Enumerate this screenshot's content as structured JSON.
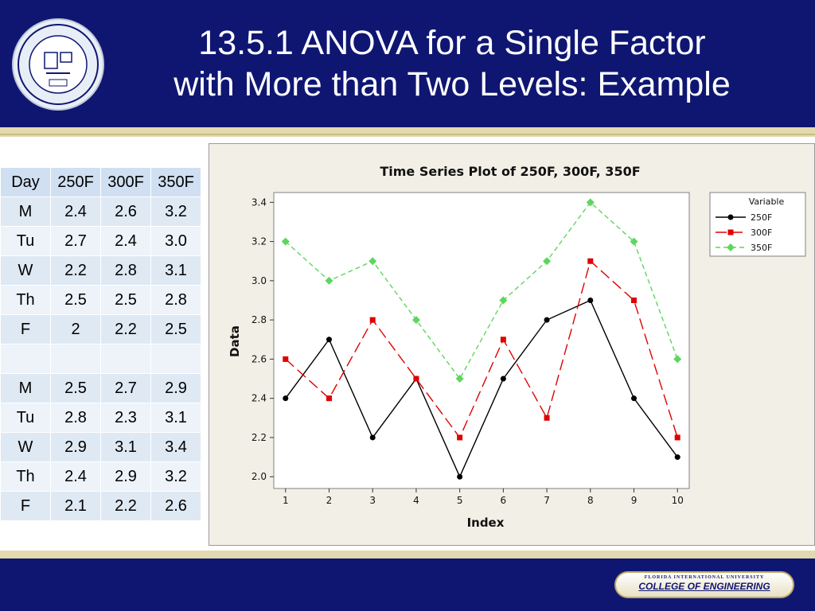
{
  "slide": {
    "title_line1": "13.5.1 ANOVA for a Single Factor",
    "title_line2": "with More than Two Levels: Example",
    "footer_university": "FLORIDA INTERNATIONAL UNIVERSITY",
    "footer_college": "COLLEGE OF ENGINEERING",
    "colors": {
      "header": "#0f1672",
      "stripe": "#e3d9ae"
    }
  },
  "table": {
    "headers": [
      "Day",
      "250F",
      "300F",
      "350F"
    ],
    "rows": [
      [
        "M",
        "2.4",
        "2.6",
        "3.2"
      ],
      [
        "Tu",
        "2.7",
        "2.4",
        "3.0"
      ],
      [
        "W",
        "2.2",
        "2.8",
        "3.1"
      ],
      [
        "Th",
        "2.5",
        "2.5",
        "2.8"
      ],
      [
        "F",
        "2",
        "2.2",
        "2.5"
      ],
      [
        "",
        "",
        "",
        ""
      ],
      [
        "M",
        "2.5",
        "2.7",
        "2.9"
      ],
      [
        "Tu",
        "2.8",
        "2.3",
        "3.1"
      ],
      [
        "W",
        "2.9",
        "3.1",
        "3.4"
      ],
      [
        "Th",
        "2.4",
        "2.9",
        "3.2"
      ],
      [
        "F",
        "2.1",
        "2.2",
        "2.6"
      ]
    ]
  },
  "chart_data": {
    "type": "line",
    "title": "Time Series Plot of 250F, 300F, 350F",
    "xlabel": "Index",
    "ylabel": "Data",
    "x": [
      1,
      2,
      3,
      4,
      5,
      6,
      7,
      8,
      9,
      10
    ],
    "ylim": [
      1.94,
      3.45
    ],
    "yticks": [
      2.0,
      2.2,
      2.4,
      2.6,
      2.8,
      3.0,
      3.2,
      3.4
    ],
    "ytick_labels": [
      "2.0",
      "2.2",
      "2.4",
      "2.6",
      "2.8",
      "3.0",
      "3.2",
      "3.4"
    ],
    "legend_title": "Variable",
    "legend_position": "right",
    "grid": false,
    "series": [
      {
        "name": "250F",
        "values": [
          2.4,
          2.7,
          2.2,
          2.5,
          2.0,
          2.5,
          2.8,
          2.9,
          2.4,
          2.1
        ],
        "color": "#000000",
        "marker": "circle",
        "dash": ""
      },
      {
        "name": "300F",
        "values": [
          2.6,
          2.4,
          2.8,
          2.5,
          2.2,
          2.7,
          2.3,
          3.1,
          2.9,
          2.2
        ],
        "color": "#e00000",
        "marker": "square",
        "dash": "14 6"
      },
      {
        "name": "350F",
        "values": [
          3.2,
          3.0,
          3.1,
          2.8,
          2.5,
          2.9,
          3.1,
          3.4,
          3.2,
          2.6
        ],
        "color": "#5ed65e",
        "marker": "diamond",
        "dash": "6 4"
      }
    ]
  }
}
